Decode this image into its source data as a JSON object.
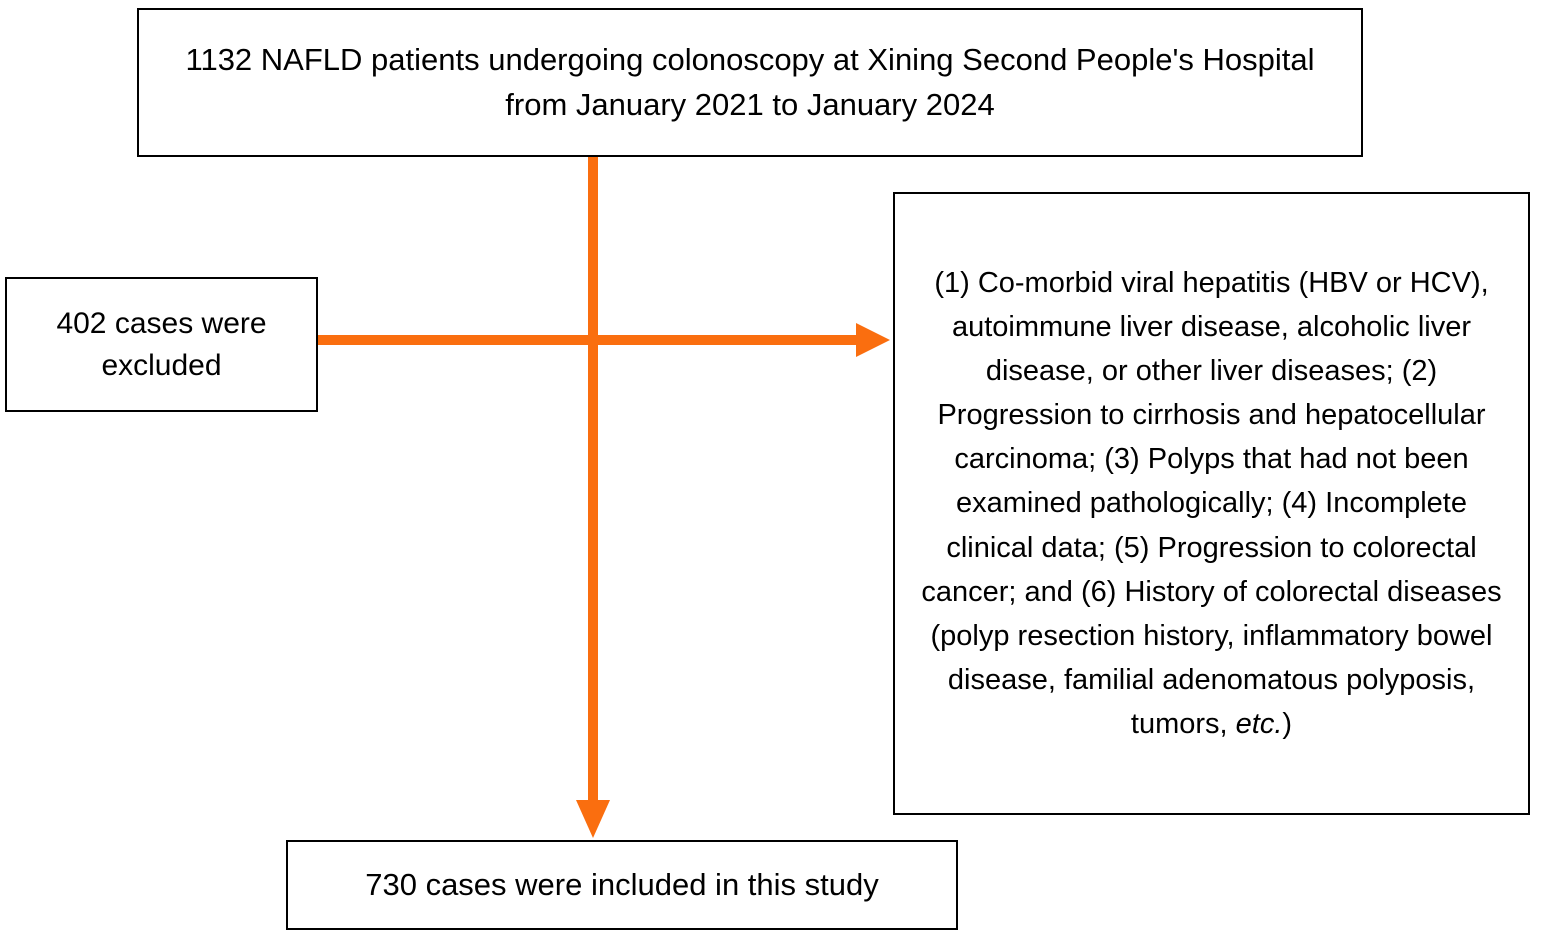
{
  "colors": {
    "arrow": "#FA6E0F",
    "border": "#000000",
    "background": "#FFFFFF",
    "text": "#000000"
  },
  "diagram": {
    "enrollment_box": {
      "text": "1132 NAFLD patients undergoing colonoscopy at Xining Second People's Hospital from January 2021 to January 2024"
    },
    "excluded_box": {
      "text": "402 cases were excluded"
    },
    "exclusion_reasons_box": {
      "text_main": "(1) Co-morbid viral hepatitis (HBV or HCV), autoimmune liver disease, alcoholic liver disease, or other liver diseases; (2) Progression to cirrhosis and hepatocellular carcinoma; (3) Polyps that had not been examined pathologically; (4) Incomplete clinical data; (5) Progression to colorectal cancer; and (6) History of colorectal diseases (polyp resection history, inflammatory bowel disease, familial adenomatous polyposis, tumors, ",
      "text_italic": "etc.",
      "text_suffix": ")"
    },
    "included_box": {
      "text": "730 cases were included in this study"
    },
    "counts": {
      "initial_patients": 1132,
      "excluded_cases": 402,
      "included_cases": 730
    }
  }
}
